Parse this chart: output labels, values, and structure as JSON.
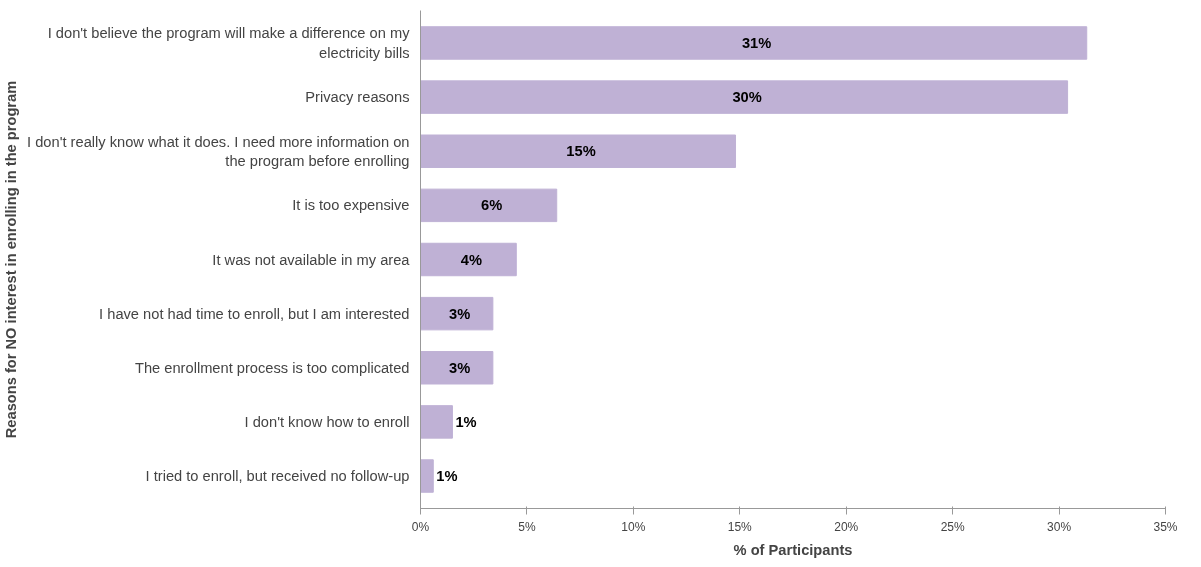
{
  "chart_data": {
    "type": "bar",
    "orientation": "horizontal",
    "ylabel": "Reasons for NO interest in enrolling in the program",
    "xlabel": "% of Participants",
    "categories": [
      "I don't believe the program will make a difference on my electricity bills",
      "Privacy reasons",
      "I don't really know what it does. I need more information on the program before enrolling",
      "It is too expensive",
      "It was not available in my area",
      "I have not had time to enroll, but I am interested",
      "The enrollment process is too complicated",
      "I don't know how to enroll",
      "I tried to enroll, but received no follow-up"
    ],
    "values": [
      31.3,
      30.4,
      14.8,
      6.4,
      4.5,
      3.4,
      3.4,
      1.5,
      0.6
    ],
    "value_labels": [
      "31%",
      "30%",
      "15%",
      "6%",
      "4%",
      "3%",
      "3%",
      "1%",
      "1%"
    ],
    "color": "#bfb1d5",
    "xlim": [
      0,
      35
    ],
    "xticks": [
      {
        "value": 0,
        "label": "0%"
      },
      {
        "value": 5,
        "label": "5%"
      },
      {
        "value": 10,
        "label": "10%"
      },
      {
        "value": 15,
        "label": "15%"
      },
      {
        "value": 20,
        "label": "20%"
      },
      {
        "value": 25,
        "label": "25%"
      },
      {
        "value": 30,
        "label": "30%"
      },
      {
        "value": 35,
        "label": "35%"
      }
    ],
    "grid": false
  }
}
